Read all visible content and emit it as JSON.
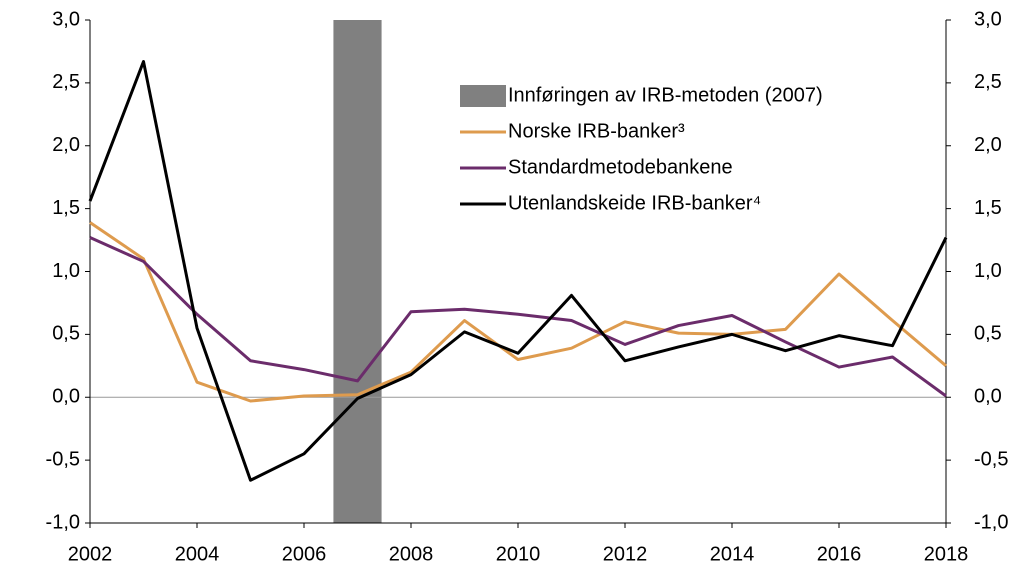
{
  "chart_data": {
    "type": "line",
    "x": [
      2002,
      2003,
      2004,
      2005,
      2006,
      2007,
      2008,
      2009,
      2010,
      2011,
      2012,
      2013,
      2014,
      2015,
      2016,
      2017,
      2018
    ],
    "xlim": [
      2002,
      2018
    ],
    "xticks": [
      2002,
      2004,
      2006,
      2008,
      2010,
      2012,
      2014,
      2016,
      2018
    ],
    "ylim": [
      -1,
      3
    ],
    "yticks": [
      {
        "value": -1,
        "label": "-1,0"
      },
      {
        "value": -0.5,
        "label": "-0,5"
      },
      {
        "value": 0,
        "label": "0,0"
      },
      {
        "value": 0.5,
        "label": "0,5"
      },
      {
        "value": 1,
        "label": "1,0"
      },
      {
        "value": 1.5,
        "label": "1,5"
      },
      {
        "value": 2,
        "label": "2,0"
      },
      {
        "value": 2.5,
        "label": "2,5"
      },
      {
        "value": 3,
        "label": "3,0"
      }
    ],
    "y2lim": [
      -1,
      3
    ],
    "y2ticks": [
      {
        "value": -1,
        "label": "-1,0"
      },
      {
        "value": -0.5,
        "label": "-0,5"
      },
      {
        "value": 0,
        "label": "0,0"
      },
      {
        "value": 0.5,
        "label": "0,5"
      },
      {
        "value": 1,
        "label": "1,0"
      },
      {
        "value": 1.5,
        "label": "1,5"
      },
      {
        "value": 2,
        "label": "2,0"
      },
      {
        "value": 2.5,
        "label": "2,5"
      },
      {
        "value": 3,
        "label": "3,0"
      }
    ],
    "shaded_period": {
      "name": "Innføringen av IRB-metoden (2007)",
      "xlim": [
        2006.55,
        2007.45
      ],
      "color": "#808080"
    },
    "series": [
      {
        "name": "Norske IRB-banker³",
        "color": "#DE9B4E",
        "values": [
          1.39,
          1.1,
          0.12,
          -0.03,
          0.01,
          0.02,
          0.2,
          0.61,
          0.3,
          0.39,
          0.6,
          0.51,
          0.5,
          0.54,
          0.98,
          0.61,
          0.25
        ]
      },
      {
        "name": "Standardmetodebankene",
        "color": "#6B2C6B",
        "values": [
          1.27,
          1.08,
          0.66,
          0.29,
          0.22,
          0.13,
          0.68,
          0.7,
          0.66,
          0.61,
          0.42,
          0.57,
          0.65,
          0.44,
          0.24,
          0.32,
          0.01
        ]
      },
      {
        "name": "Utenlandskeide IRB-banker⁴",
        "color": "#000000",
        "values": [
          1.56,
          2.67,
          0.55,
          -0.66,
          -0.45,
          -0.01,
          0.18,
          0.52,
          0.35,
          0.81,
          0.29,
          0.4,
          0.5,
          0.37,
          0.49,
          0.41,
          1.27
        ]
      }
    ]
  }
}
